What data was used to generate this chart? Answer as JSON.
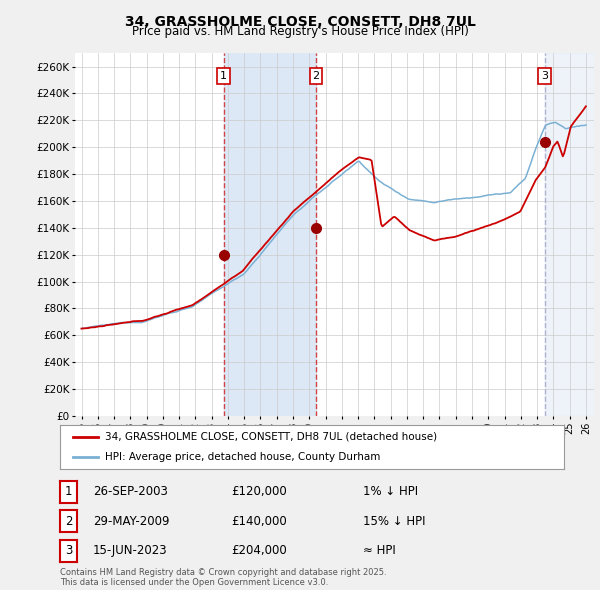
{
  "title_line1": "34, GRASSHOLME CLOSE, CONSETT, DH8 7UL",
  "title_line2": "Price paid vs. HM Land Registry's House Price Index (HPI)",
  "ylim": [
    0,
    270000
  ],
  "yticks": [
    0,
    20000,
    40000,
    60000,
    80000,
    100000,
    120000,
    140000,
    160000,
    180000,
    200000,
    220000,
    240000,
    260000
  ],
  "ytick_labels": [
    "£0",
    "£20K",
    "£40K",
    "£60K",
    "£80K",
    "£100K",
    "£120K",
    "£140K",
    "£160K",
    "£180K",
    "£200K",
    "£220K",
    "£240K",
    "£260K"
  ],
  "background_color": "#f0f0f0",
  "plot_bg_color": "#ffffff",
  "grid_color": "#cccccc",
  "red_line_color": "#cc0000",
  "blue_line_color": "#7ab0d4",
  "sale_dates": [
    2003.74,
    2009.41,
    2023.46
  ],
  "sale_prices": [
    120000,
    140000,
    204000
  ],
  "sale_labels": [
    "1",
    "2",
    "3"
  ],
  "shade_color": "#dce8f5",
  "dashed_colors": [
    "#cc3333",
    "#cc3333",
    "#aaaacc"
  ],
  "legend_entries": [
    "34, GRASSHOLME CLOSE, CONSETT, DH8 7UL (detached house)",
    "HPI: Average price, detached house, County Durham"
  ],
  "table_rows": [
    {
      "num": "1",
      "date": "26-SEP-2003",
      "price": "£120,000",
      "hpi": "1% ↓ HPI"
    },
    {
      "num": "2",
      "date": "29-MAY-2009",
      "price": "£140,000",
      "hpi": "15% ↓ HPI"
    },
    {
      "num": "3",
      "date": "15-JUN-2023",
      "price": "£204,000",
      "hpi": "≈ HPI"
    }
  ],
  "footer": "Contains HM Land Registry data © Crown copyright and database right 2025.\nThis data is licensed under the Open Government Licence v3.0.",
  "xlim_start": 1994.6,
  "xlim_end": 2026.5
}
